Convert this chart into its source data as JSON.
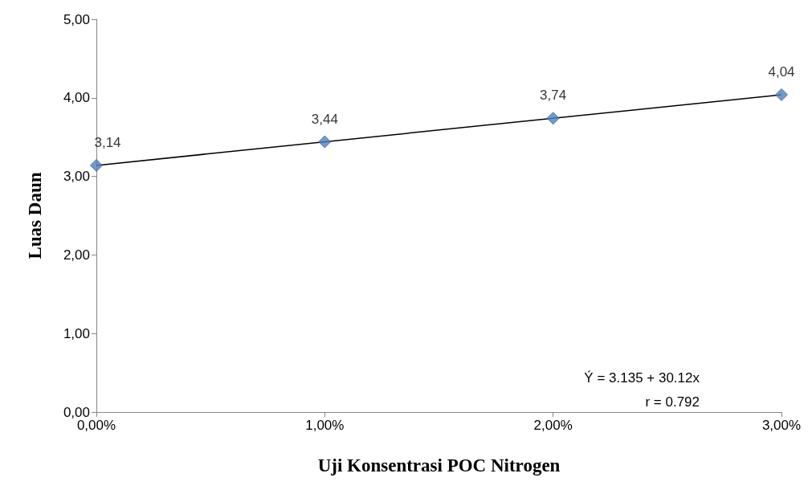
{
  "chart_data": {
    "type": "scatter",
    "xlabel": "Uji Konsentrasi POC Nitrogen",
    "ylabel": "Luas Daun",
    "xlim": [
      0,
      3
    ],
    "xticks": [
      {
        "value": 0,
        "label": "0,00%"
      },
      {
        "value": 1,
        "label": "1,00%"
      },
      {
        "value": 2,
        "label": "2,00%"
      },
      {
        "value": 3,
        "label": "3,00%"
      }
    ],
    "ylim": [
      0,
      5
    ],
    "yticks": [
      {
        "value": 0,
        "label": "0,00"
      },
      {
        "value": 1,
        "label": "1,00"
      },
      {
        "value": 2,
        "label": "2,00"
      },
      {
        "value": 3,
        "label": "3,00"
      },
      {
        "value": 4,
        "label": "4,00"
      },
      {
        "value": 5,
        "label": "5,00"
      }
    ],
    "grid": false,
    "series": [
      {
        "marker": "diamond",
        "color": "#4f81bd",
        "x": [
          0,
          1,
          2,
          3
        ],
        "values": [
          3.14,
          3.44,
          3.74,
          4.04
        ],
        "value_labels": [
          "3,14",
          "3,44",
          "3,74",
          "4,04"
        ]
      },
      {
        "type": "line",
        "marker": "none",
        "color": "#000000",
        "x": [
          0,
          3
        ],
        "values": [
          3.14,
          4.04
        ]
      }
    ],
    "annotations": [
      "Ý = 3.135 + 30.12x",
      "r = 0.792"
    ]
  }
}
